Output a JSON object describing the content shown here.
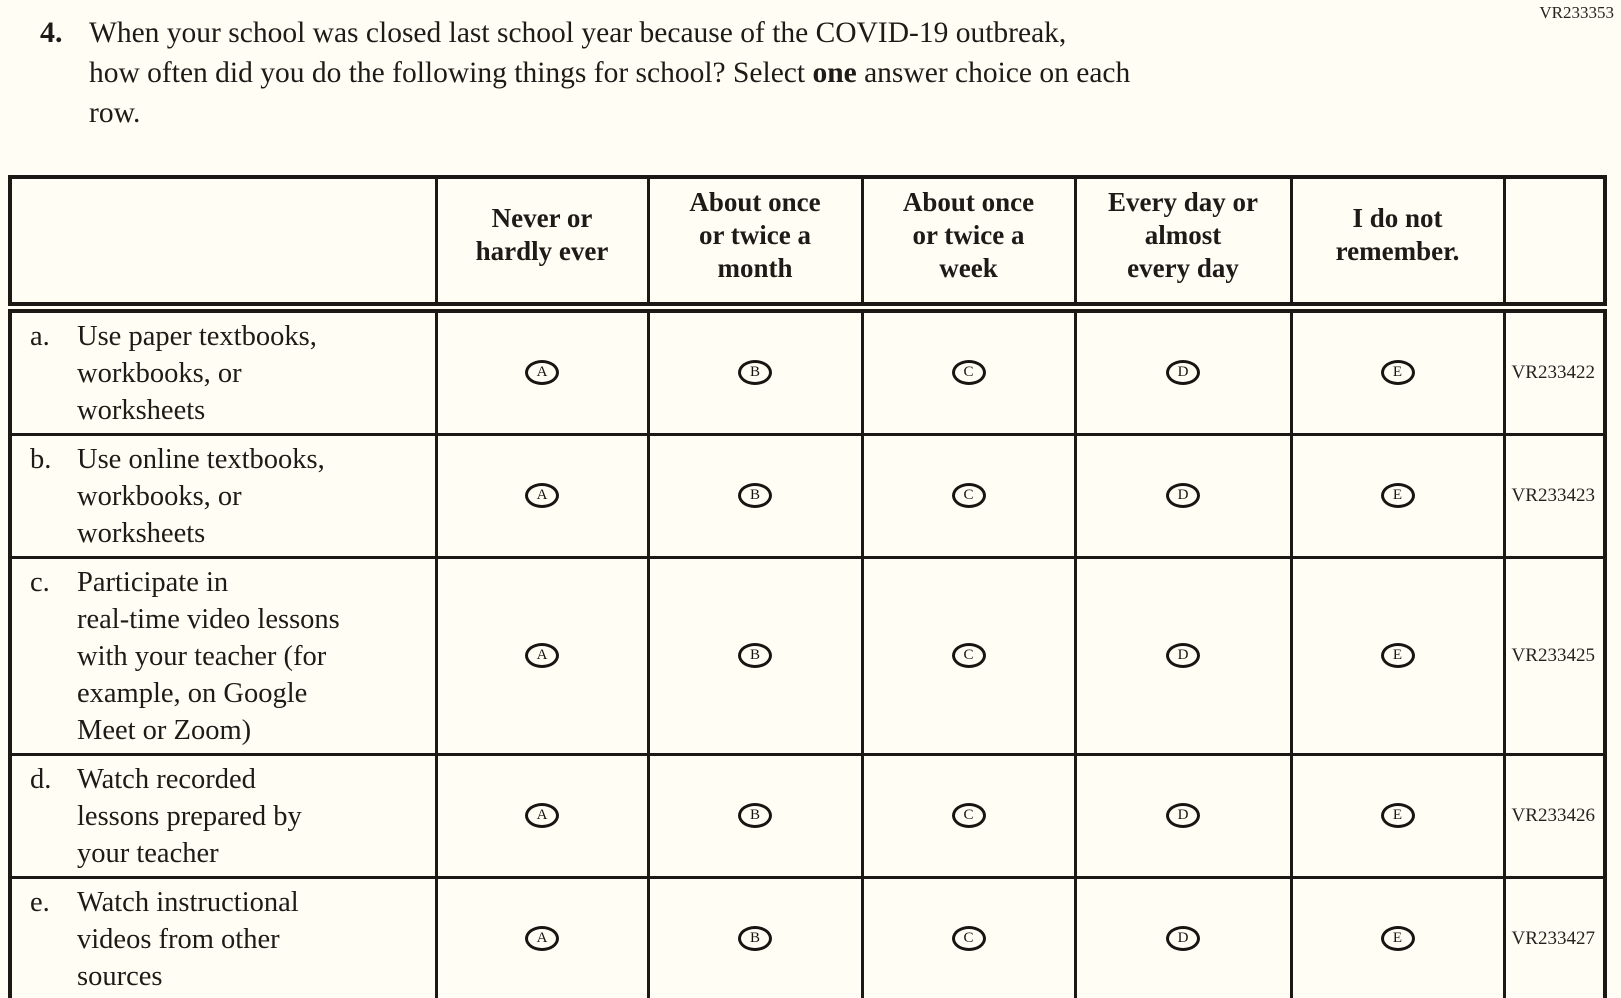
{
  "page": {
    "corner_code": "VR233353",
    "background_color": "#fffdf4",
    "text_color": "#1e1a17",
    "border_color": "#1b1816"
  },
  "question": {
    "number": "4.",
    "text_before_bold": "When your school was closed last school year because of the COVID-19 outbreak,\nhow often did you do the following things for school? Select ",
    "bold_word": "one",
    "text_after_bold": " answer choice on each\nrow."
  },
  "table": {
    "columns": [
      "Never or\nhardly ever",
      "About once\nor twice a\nmonth",
      "About once\nor twice a\nweek",
      "Every day or\nalmost\nevery day",
      "I do not\nremember."
    ],
    "bubble_letters": [
      "A",
      "B",
      "C",
      "D",
      "E"
    ],
    "rows": [
      {
        "letter": "a.",
        "label": "Use paper textbooks,\nworkbooks, or\nworksheets",
        "code": "VR233422"
      },
      {
        "letter": "b.",
        "label": "Use online textbooks,\nworkbooks, or\nworksheets",
        "code": "VR233423"
      },
      {
        "letter": "c.",
        "label": "Participate in\nreal-time video lessons\nwith your teacher (for\nexample, on Google\nMeet or Zoom)",
        "code": "VR233425"
      },
      {
        "letter": "d.",
        "label": "Watch recorded\nlessons prepared by\nyour teacher",
        "code": "VR233426"
      },
      {
        "letter": "e.",
        "label": "Watch instructional\nvideos from other\nsources",
        "code": "VR233427"
      }
    ]
  }
}
